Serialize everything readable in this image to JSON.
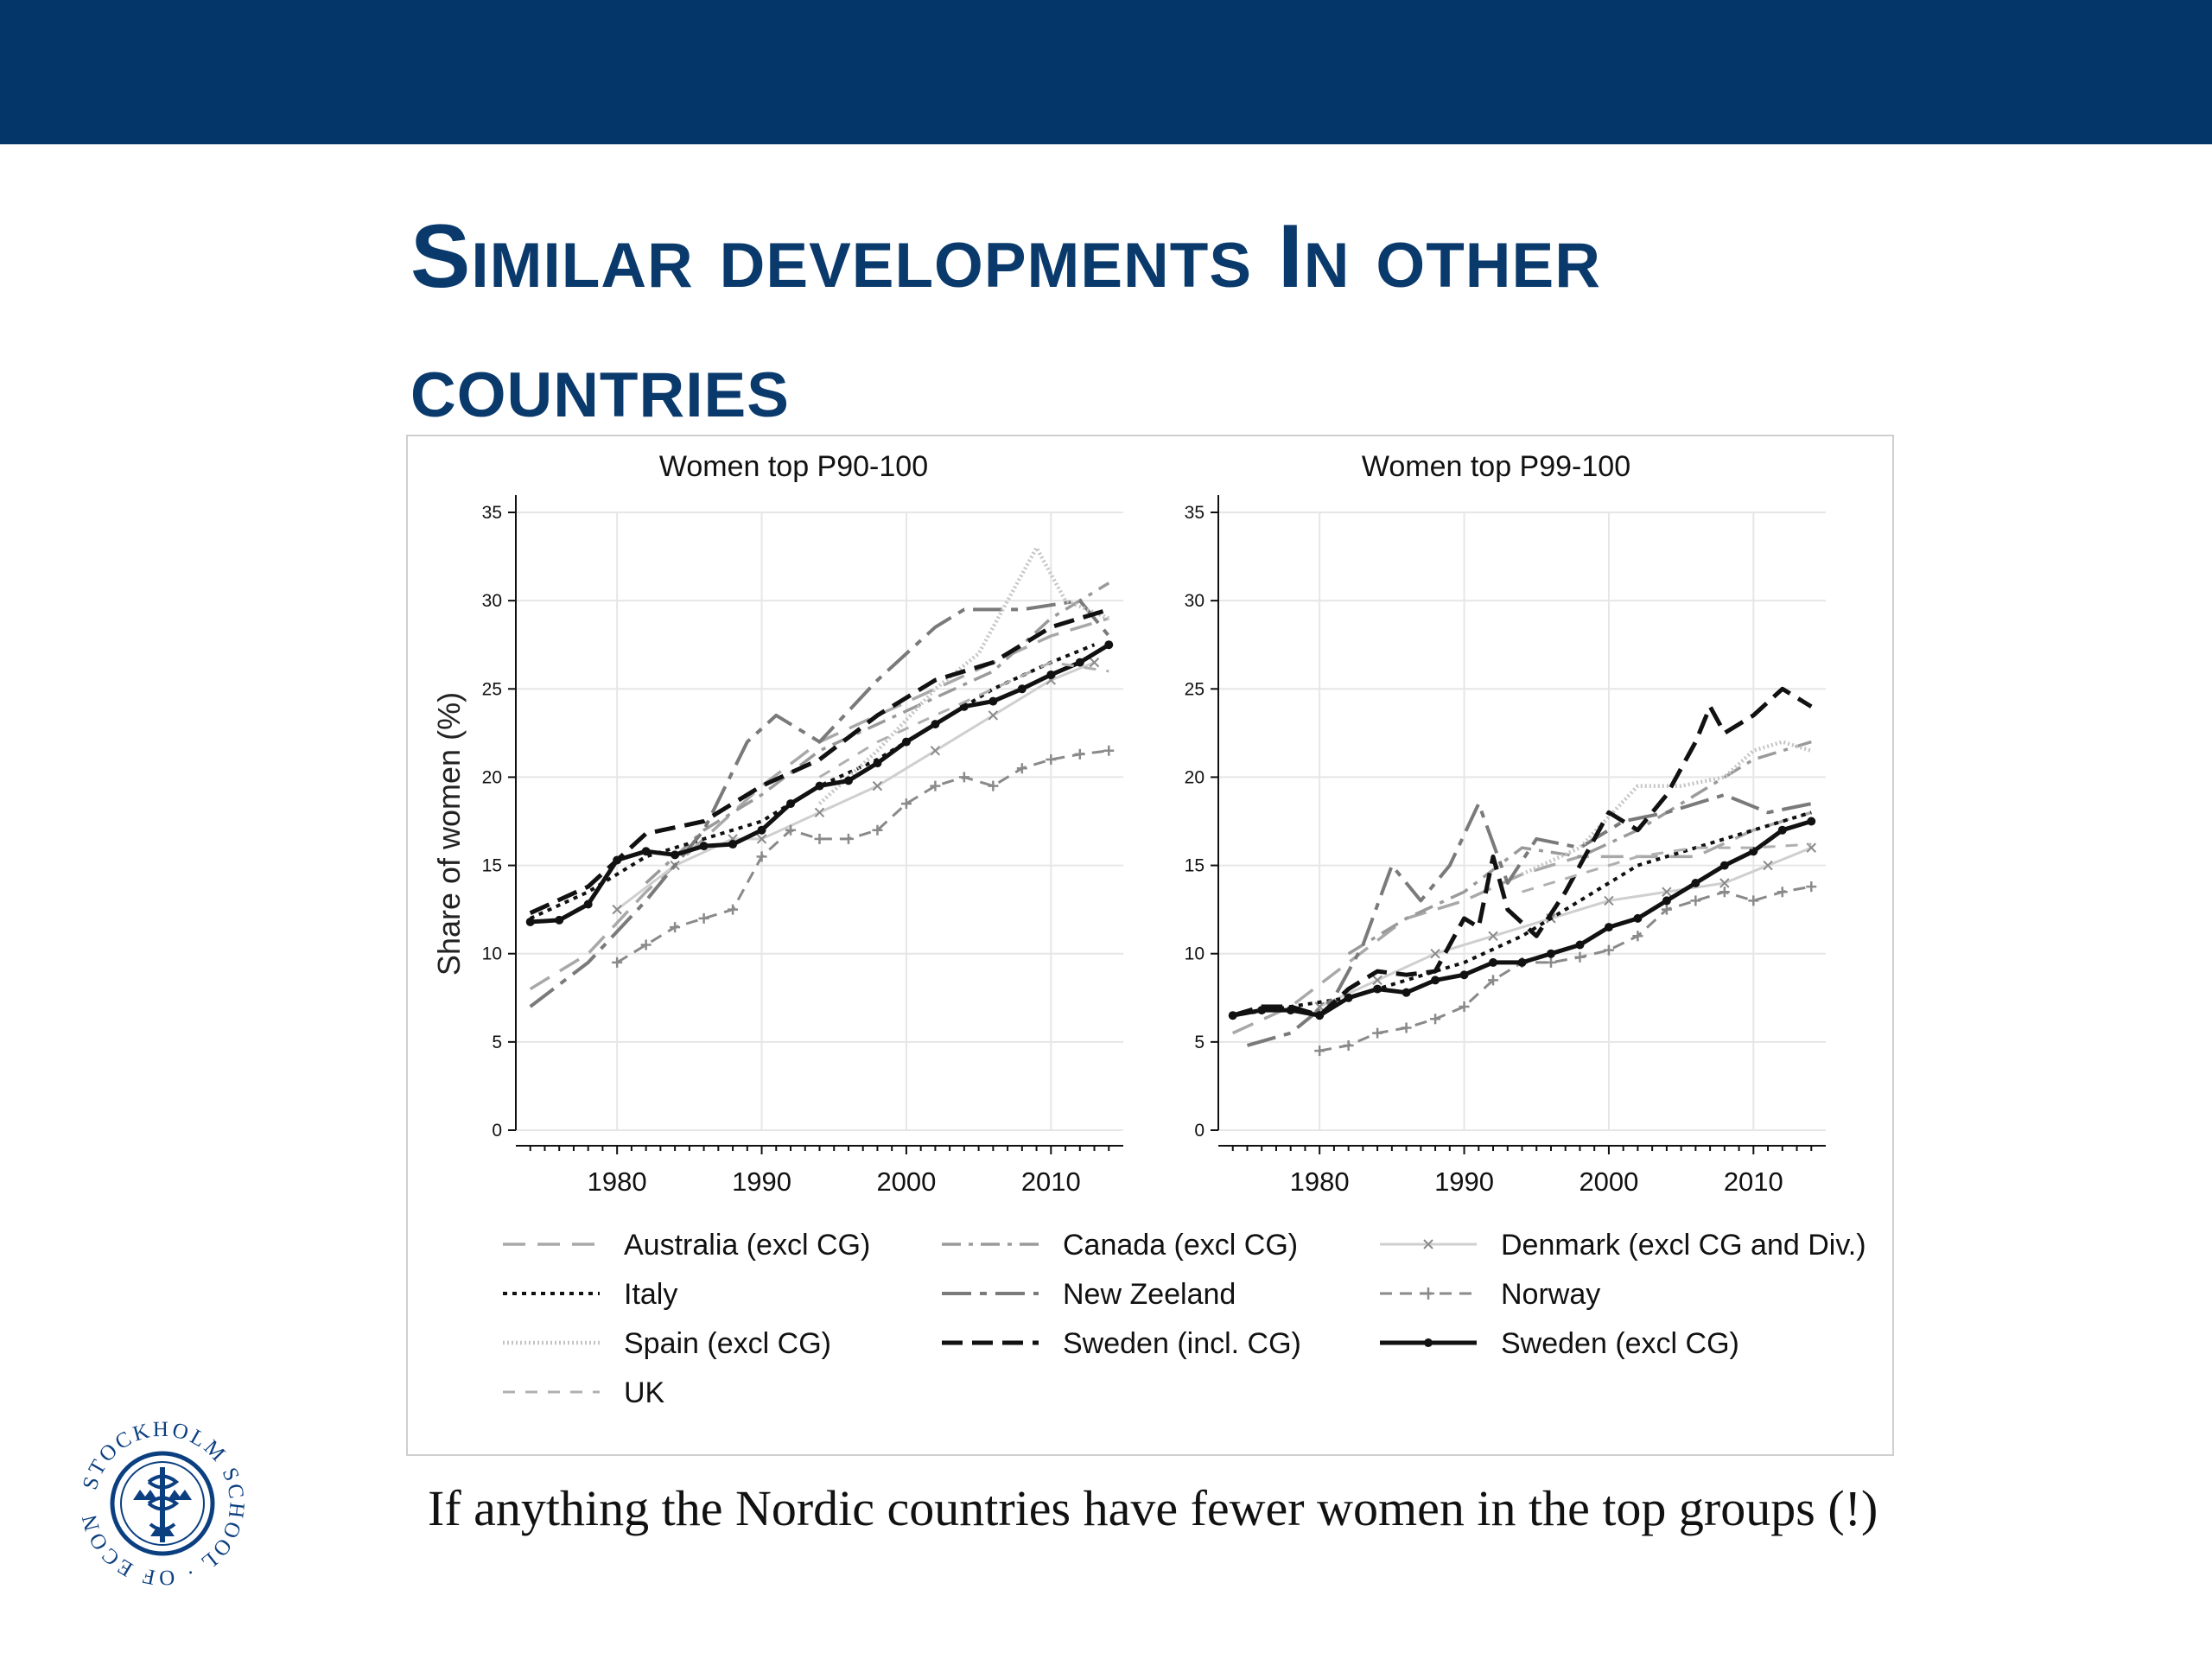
{
  "slide": {
    "title": "Similar developments In other countries",
    "caption": "If anything the Nordic countries have fewer women in the top groups (!)",
    "logo_text": "STOCKHOLM SCHOOL OF ECONOMICS",
    "colors": {
      "header_bar": "#04366a",
      "title": "#0a3a6c",
      "logo": "#0b3f80"
    },
    "logo_icon": "stockholm-school-of-economics-seal-icon"
  },
  "chart_data": [
    {
      "type": "line",
      "title": "Women top P90-100",
      "xlabel": "",
      "ylabel": "Share of women (%)",
      "xlim": [
        1973,
        2015
      ],
      "ylim": [
        0,
        35
      ],
      "xticks": [
        1980,
        1990,
        2000,
        2010
      ],
      "yticks": [
        0,
        5,
        10,
        15,
        20,
        25,
        30,
        35
      ],
      "grid": true,
      "series": [
        {
          "name": "Australia (excl CG)",
          "x": [
            1974,
            1978,
            1982,
            1986,
            1990,
            1994,
            1998,
            2002,
            2006,
            2010,
            2014
          ],
          "y": [
            8,
            10,
            13.5,
            16.5,
            19.5,
            22,
            23.5,
            25,
            26.5,
            28,
            29
          ]
        },
        {
          "name": "Canada (excl CG)",
          "x": [
            1982,
            1986,
            1990,
            1994,
            1998,
            2002,
            2006,
            2010,
            2014
          ],
          "y": [
            14,
            17,
            19,
            21.5,
            23,
            24.5,
            26,
            29,
            31
          ]
        },
        {
          "name": "Denmark (excl CG and Div.)",
          "x": [
            1980,
            1984,
            1988,
            1990,
            1994,
            1998,
            2002,
            2006,
            2010,
            2013
          ],
          "y": [
            12.5,
            15,
            16.5,
            16.5,
            18,
            19.5,
            21.5,
            23.5,
            25.5,
            26.5
          ]
        },
        {
          "name": "Italy",
          "x": [
            1974,
            1978,
            1982,
            1986,
            1990,
            1994,
            1998,
            2002,
            2006,
            2010,
            2013
          ],
          "y": [
            12,
            13.5,
            15.5,
            16.5,
            17.5,
            19.5,
            21,
            23,
            25,
            26.5,
            27.5
          ]
        },
        {
          "name": "New Zeeland",
          "x": [
            1974,
            1978,
            1982,
            1986,
            1989,
            1991,
            1994,
            1998,
            2002,
            2004,
            2008,
            2012,
            2014
          ],
          "y": [
            7,
            9.5,
            13,
            17,
            22,
            23.5,
            22,
            25.5,
            28.5,
            29.5,
            29.5,
            30,
            28
          ]
        },
        {
          "name": "Norway",
          "x": [
            1980,
            1982,
            1984,
            1986,
            1988,
            1990,
            1992,
            1994,
            1996,
            1998,
            2000,
            2002,
            2004,
            2006,
            2008,
            2010,
            2012,
            2014
          ],
          "y": [
            9.5,
            10.5,
            11.5,
            12,
            12.5,
            15.5,
            17,
            16.5,
            16.5,
            17,
            18.5,
            19.5,
            20,
            19.5,
            20.5,
            21,
            21.3,
            21.5
          ]
        },
        {
          "name": "Spain (excl CG)",
          "x": [
            1994,
            1998,
            2002,
            2005,
            2009,
            2011,
            2014
          ],
          "y": [
            18.5,
            21.5,
            25,
            27,
            33,
            30,
            29
          ]
        },
        {
          "name": "Sweden (incl. CG)",
          "x": [
            1974,
            1978,
            1982,
            1986,
            1990,
            1994,
            1998,
            2002,
            2006,
            2010,
            2014
          ],
          "y": [
            12.3,
            13.8,
            16.8,
            17.5,
            19.5,
            21,
            23.5,
            25.5,
            26.5,
            28.5,
            29.5
          ]
        },
        {
          "name": "Sweden (excl CG)",
          "x": [
            1974,
            1976,
            1978,
            1980,
            1982,
            1984,
            1986,
            1988,
            1990,
            1992,
            1994,
            1996,
            1998,
            2000,
            2002,
            2004,
            2006,
            2008,
            2010,
            2012,
            2014
          ],
          "y": [
            11.8,
            11.9,
            12.8,
            15.3,
            15.8,
            15.6,
            16.1,
            16.2,
            17,
            18.5,
            19.5,
            19.8,
            20.8,
            22,
            23,
            24,
            24.3,
            25,
            25.8,
            26.5,
            27.5
          ]
        },
        {
          "name": "UK",
          "x": [
            1994,
            1998,
            2002,
            2006,
            2010,
            2014
          ],
          "y": [
            20,
            22,
            23.5,
            25,
            26.5,
            26
          ]
        }
      ]
    },
    {
      "type": "line",
      "title": "Women top P99-100",
      "xlabel": "",
      "ylabel": "",
      "xlim": [
        1973,
        2015
      ],
      "ylim": [
        0,
        35
      ],
      "xticks": [
        1980,
        1990,
        2000,
        2010
      ],
      "yticks": [
        0,
        5,
        10,
        15,
        20,
        25,
        30,
        35
      ],
      "grid": true,
      "series": [
        {
          "name": "Australia (excl CG)",
          "x": [
            1974,
            1978,
            1982,
            1986,
            1990,
            1994,
            1998,
            2002,
            2006,
            2010,
            2014
          ],
          "y": [
            5.5,
            7,
            9.5,
            12,
            13,
            14.5,
            15.5,
            15.5,
            15.5,
            17,
            18
          ]
        },
        {
          "name": "Canada (excl CG)",
          "x": [
            1982,
            1986,
            1990,
            1994,
            1998,
            2002,
            2006,
            2010,
            2014
          ],
          "y": [
            10,
            12,
            13.5,
            16,
            15.5,
            17,
            19,
            21,
            22
          ]
        },
        {
          "name": "Denmark (excl CG and Div.)",
          "x": [
            1980,
            1984,
            1988,
            1992,
            1996,
            2000,
            2004,
            2008,
            2011,
            2014
          ],
          "y": [
            7,
            8.5,
            10,
            11,
            12,
            13,
            13.5,
            14,
            15,
            16
          ]
        },
        {
          "name": "Italy",
          "x": [
            1974,
            1978,
            1982,
            1986,
            1990,
            1994,
            1998,
            2002,
            2006,
            2010,
            2014
          ],
          "y": [
            6.5,
            7,
            7.5,
            8.5,
            9.5,
            11,
            13,
            15,
            16,
            17,
            18
          ]
        },
        {
          "name": "New Zeeland",
          "x": [
            1975,
            1978,
            1981,
            1983,
            1985,
            1987,
            1989,
            1991,
            1993,
            1995,
            1998,
            2001,
            2004,
            2008,
            2011,
            2014
          ],
          "y": [
            4.8,
            5.5,
            7.5,
            10.5,
            15,
            13,
            15,
            18.5,
            14,
            16.5,
            16,
            17.5,
            18,
            19,
            18,
            18.5
          ]
        },
        {
          "name": "Norway",
          "x": [
            1980,
            1982,
            1984,
            1986,
            1988,
            1990,
            1992,
            1994,
            1996,
            1998,
            2000,
            2002,
            2004,
            2006,
            2008,
            2010,
            2012,
            2014
          ],
          "y": [
            4.5,
            4.8,
            5.5,
            5.8,
            6.3,
            7,
            8.5,
            9.5,
            9.5,
            9.8,
            10.2,
            11,
            12.5,
            13,
            13.5,
            13,
            13.5,
            13.8
          ]
        },
        {
          "name": "Spain (excl CG)",
          "x": [
            1994,
            1998,
            2002,
            2005,
            2008,
            2010,
            2012,
            2014
          ],
          "y": [
            14.5,
            16,
            19.5,
            19.5,
            20,
            21.5,
            22,
            21.5
          ]
        },
        {
          "name": "Sweden (incl. CG)",
          "x": [
            1974,
            1976,
            1978,
            1980,
            1982,
            1984,
            1986,
            1988,
            1990,
            1991,
            1992,
            1993,
            1995,
            1997,
            1998,
            2000,
            2002,
            2004,
            2006,
            2007,
            2008,
            2010,
            2012,
            2014
          ],
          "y": [
            6.5,
            7,
            7,
            6.5,
            8,
            9,
            8.8,
            9,
            12,
            11.5,
            15.5,
            12.5,
            11,
            13.5,
            15,
            18,
            17,
            19,
            22,
            24,
            22.5,
            23.5,
            25,
            24
          ]
        },
        {
          "name": "Sweden (excl CG)",
          "x": [
            1974,
            1976,
            1978,
            1980,
            1982,
            1984,
            1986,
            1988,
            1990,
            1992,
            1994,
            1996,
            1998,
            2000,
            2002,
            2004,
            2006,
            2008,
            2010,
            2012,
            2014
          ],
          "y": [
            6.5,
            6.8,
            6.8,
            6.5,
            7.5,
            8,
            7.8,
            8.5,
            8.8,
            9.5,
            9.5,
            10,
            10.5,
            11.5,
            12,
            13,
            14,
            15,
            15.8,
            17,
            17.5
          ]
        },
        {
          "name": "UK",
          "x": [
            1994,
            1998,
            2002,
            2006,
            2010,
            2014
          ],
          "y": [
            13.5,
            14.5,
            15.5,
            16,
            16,
            16.2
          ]
        }
      ]
    }
  ],
  "legend": {
    "position": "bottom",
    "columns": 3,
    "items": [
      {
        "label": "Australia (excl CG)",
        "style": "long-dash-light"
      },
      {
        "label": "Canada (excl CG)",
        "style": "dash-dot-light"
      },
      {
        "label": "Denmark (excl CG and Div.)",
        "style": "solid-x-markers-light"
      },
      {
        "label": "Italy",
        "style": "dotted-black"
      },
      {
        "label": "New Zeeland",
        "style": "long-dash-dot-gray"
      },
      {
        "label": "Norway",
        "style": "dash-plus-markers-gray"
      },
      {
        "label": "Spain (excl CG)",
        "style": "dense-dotted-light"
      },
      {
        "label": "Sweden (incl. CG)",
        "style": "long-dash-black"
      },
      {
        "label": "Sweden (excl CG)",
        "style": "solid-dot-markers-black"
      },
      {
        "label": "UK",
        "style": "short-dash-light"
      }
    ]
  }
}
